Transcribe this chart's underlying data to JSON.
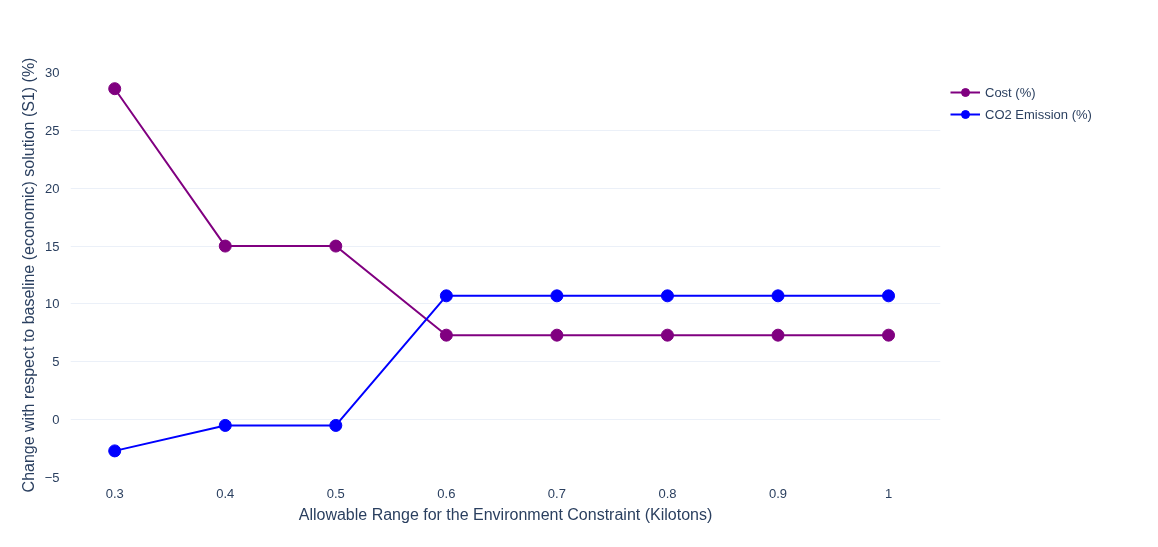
{
  "chart_data": {
    "type": "line",
    "xlabel": "Allowable Range for the Environment Constraint (Kilotons)",
    "ylabel": "Change with respect to baseline (economic) solution (S1) (%)",
    "x": [
      0.3,
      0.4,
      0.5,
      0.6,
      0.7,
      0.8,
      0.9,
      1
    ],
    "series": [
      {
        "name": "Cost (%)",
        "color": "#800080",
        "values": [
          28.6,
          15.0,
          15.0,
          7.3,
          7.3,
          7.3,
          7.3,
          7.3
        ]
      },
      {
        "name": "CO2 Emission (%)",
        "color": "#0000ff",
        "values": [
          -2.7,
          -0.5,
          -0.5,
          10.7,
          10.7,
          10.7,
          10.7,
          10.7
        ]
      }
    ],
    "xlim": [
      0.26,
      1.047
    ],
    "ylim": [
      -5,
      30
    ],
    "xticks": [
      0.3,
      0.4,
      0.5,
      0.6,
      0.7,
      0.8,
      0.9,
      {
        "value": 1,
        "label": "1"
      }
    ],
    "yticks": [
      -5,
      0,
      5,
      10,
      15,
      20,
      25,
      30
    ],
    "grid": "y",
    "legend": "top right",
    "marker": "circle",
    "line_style": "solid"
  }
}
